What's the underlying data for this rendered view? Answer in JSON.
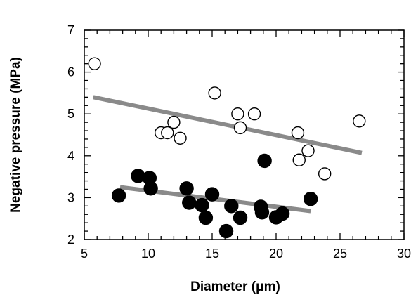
{
  "chart_data": {
    "type": "scatter",
    "title": "",
    "xlabel": "Diameter (μm)",
    "ylabel": "Negative pressure (MPa)",
    "xlim": [
      5,
      30
    ],
    "ylim": [
      2,
      7
    ],
    "xticks": [
      5,
      10,
      15,
      20,
      25,
      30
    ],
    "yticks": [
      2,
      3,
      4,
      5,
      6,
      7
    ],
    "grid": false,
    "legend": "none",
    "series": [
      {
        "marker": "open-circle",
        "x": [
          5.8,
          11.0,
          11.5,
          12.0,
          12.5,
          15.2,
          17.0,
          17.2,
          18.3,
          21.7,
          21.8,
          22.5,
          23.8,
          26.5
        ],
        "y": [
          6.2,
          4.55,
          4.55,
          4.8,
          4.42,
          5.5,
          5.0,
          4.67,
          5.0,
          4.55,
          3.9,
          4.12,
          3.57,
          4.83
        ]
      },
      {
        "marker": "filled-circle",
        "x": [
          7.7,
          9.2,
          10.1,
          10.2,
          13.0,
          13.2,
          14.2,
          14.5,
          15.0,
          16.1,
          16.5,
          17.2,
          18.8,
          18.9,
          19.1,
          20.0,
          20.5,
          22.7
        ],
        "y": [
          3.05,
          3.52,
          3.47,
          3.22,
          3.22,
          2.88,
          2.82,
          2.52,
          3.08,
          2.2,
          2.8,
          2.52,
          2.78,
          2.65,
          3.88,
          2.53,
          2.62,
          2.97
        ]
      }
    ],
    "trendlines": [
      {
        "x": [
          5.7,
          26.7
        ],
        "y": [
          5.4,
          4.07
        ],
        "color": "#8a8a8a"
      },
      {
        "x": [
          7.8,
          22.7
        ],
        "y": [
          3.25,
          2.68
        ],
        "color": "#8a8a8a"
      }
    ]
  }
}
